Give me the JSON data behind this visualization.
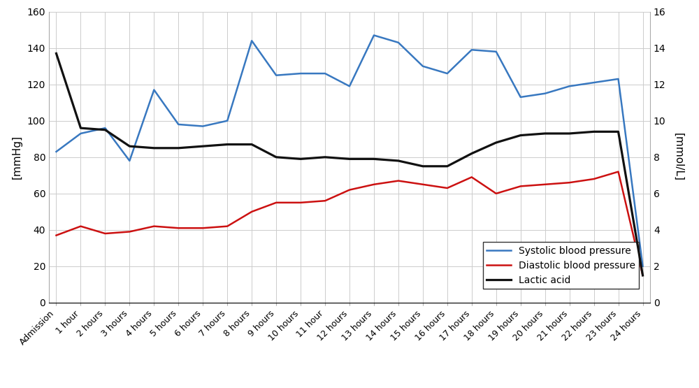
{
  "x_labels": [
    "Admission",
    "1 hour",
    "2 hours",
    "3 hours",
    "4 hours",
    "5 hours",
    "6 hours",
    "7 hours",
    "8 hours",
    "9 hours",
    "10 hours",
    "11 hour",
    "12 hours",
    "13 hours",
    "14 hours",
    "15 hours",
    "16 hours",
    "17 hours",
    "18 hours",
    "19 hours",
    "20 hours",
    "21 hours",
    "22 hours",
    "23 hours",
    "24 hours"
  ],
  "systolic": [
    83,
    93,
    96,
    78,
    117,
    98,
    97,
    100,
    144,
    125,
    126,
    126,
    119,
    147,
    143,
    130,
    126,
    139,
    138,
    113,
    115,
    119,
    121,
    123,
    20
  ],
  "diastolic": [
    37,
    42,
    38,
    39,
    42,
    41,
    41,
    42,
    50,
    55,
    55,
    56,
    62,
    65,
    67,
    65,
    63,
    69,
    60,
    64,
    65,
    66,
    68,
    72,
    15
  ],
  "lactic_acid_mmol": [
    13.7,
    9.6,
    9.5,
    8.6,
    8.5,
    8.5,
    8.6,
    8.7,
    8.7,
    8.0,
    7.9,
    8.0,
    7.9,
    7.9,
    7.8,
    7.5,
    7.5,
    8.2,
    8.8,
    9.2,
    9.3,
    9.3,
    9.4,
    9.4,
    1.5
  ],
  "systolic_color": "#3878c0",
  "diastolic_color": "#cc1111",
  "lactic_color": "#111111",
  "left_ylim": [
    0,
    160
  ],
  "right_ylim": [
    0,
    16
  ],
  "left_yticks": [
    0,
    20,
    40,
    60,
    80,
    100,
    120,
    140,
    160
  ],
  "right_yticks": [
    0,
    2,
    4,
    6,
    8,
    10,
    12,
    14,
    16
  ],
  "left_ylabel": "[mmHg]",
  "right_ylabel": "[mmol/L]",
  "grid_color": "#cccccc",
  "background_color": "#ffffff",
  "legend_labels": [
    "Systolic blood pressure",
    "Diastolic blood pressure",
    "Lactic acid"
  ],
  "line_width": 1.8,
  "figsize": [
    10.0,
    5.55
  ],
  "dpi": 100
}
